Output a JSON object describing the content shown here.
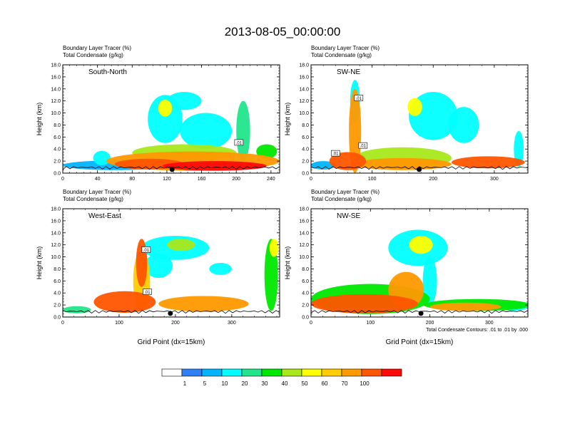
{
  "title": "2013-08-05_00:00:00",
  "legend": {
    "colors": [
      "#ffffff",
      "#2f7ff7",
      "#00b4ff",
      "#00ffff",
      "#22e58b",
      "#00e800",
      "#a8e81a",
      "#ffff00",
      "#ffcc00",
      "#ff9900",
      "#ff5500",
      "#ff0a0a"
    ],
    "labels": [
      "1",
      "5",
      "10",
      "20",
      "30",
      "40",
      "50",
      "60",
      "70",
      "100"
    ]
  },
  "contour_note": "Total Condensate Contours: .01 to .01 by .000",
  "chart_data": [
    {
      "type": "heatmap",
      "panel_label": "South-North",
      "title_lines": [
        "Boundary Layer Tracer    (%)",
        "Total Condensate    (g/kg)"
      ],
      "ylabel": "Height (km)",
      "xlabel": "",
      "xlim": [
        0,
        250
      ],
      "ylim": [
        0,
        18
      ],
      "xticks": [
        0,
        40,
        80,
        120,
        160,
        200,
        240
      ],
      "yticks": [
        "0.0",
        "2.0",
        "4.0",
        "6.0",
        "8.0",
        "10.0",
        "12.0",
        "14.0",
        "16.0",
        "18.0"
      ],
      "marker_x": 126,
      "contour_labels": [
        {
          "x": 203,
          "y": 5.1,
          "text": ".01"
        }
      ],
      "blobs": [
        {
          "cx": 60,
          "cy": 1.3,
          "rx": 60,
          "ry": 0.8,
          "level": 2
        },
        {
          "cx": 150,
          "cy": 2.0,
          "rx": 100,
          "ry": 1.6,
          "level": 9
        },
        {
          "cx": 140,
          "cy": 3.4,
          "rx": 60,
          "ry": 1.4,
          "level": 6
        },
        {
          "cx": 100,
          "cy": 1.5,
          "rx": 40,
          "ry": 0.9,
          "level": 10
        },
        {
          "cx": 175,
          "cy": 1.2,
          "rx": 60,
          "ry": 0.8,
          "level": 11
        },
        {
          "cx": 118,
          "cy": 9.0,
          "rx": 20,
          "ry": 4.0,
          "level": 3
        },
        {
          "cx": 118,
          "cy": 10.8,
          "rx": 8,
          "ry": 1.4,
          "level": 7
        },
        {
          "cx": 165,
          "cy": 7.0,
          "rx": 30,
          "ry": 3.0,
          "level": 3
        },
        {
          "cx": 140,
          "cy": 12.0,
          "rx": 20,
          "ry": 1.5,
          "level": 3
        },
        {
          "cx": 208,
          "cy": 7.0,
          "rx": 8,
          "ry": 5.0,
          "level": 4
        },
        {
          "cx": 45,
          "cy": 2.5,
          "rx": 10,
          "ry": 1.2,
          "level": 3
        },
        {
          "cx": 235,
          "cy": 3.6,
          "rx": 12,
          "ry": 1.2,
          "level": 5
        }
      ]
    },
    {
      "type": "heatmap",
      "panel_label": "SW-NE",
      "title_lines": [
        "Boundary Layer Tracer    (%)",
        "Total Condensate    (g/kg)"
      ],
      "ylabel": "Height (km)",
      "xlabel": "",
      "xlim": [
        0,
        355
      ],
      "ylim": [
        0,
        18
      ],
      "xticks": [
        0,
        100,
        200,
        300
      ],
      "yticks": [
        "0.0",
        "2.0",
        "4.0",
        "6.0",
        "8.0",
        "10.0",
        "12.0",
        "14.0",
        "16.0",
        "18.0"
      ],
      "marker_x": 177,
      "contour_labels": [
        {
          "x": 40,
          "y": 3.3,
          "text": ".01"
        },
        {
          "x": 78,
          "y": 12.5,
          "text": ".01"
        },
        {
          "x": 85,
          "y": 4.6,
          "text": ".01"
        }
      ],
      "blobs": [
        {
          "cx": 60,
          "cy": 2.0,
          "rx": 30,
          "ry": 1.5,
          "level": 10
        },
        {
          "cx": 72,
          "cy": 7.0,
          "rx": 10,
          "ry": 7.0,
          "level": 9
        },
        {
          "cx": 72,
          "cy": 12.0,
          "rx": 8,
          "ry": 3.5,
          "level": 3
        },
        {
          "cx": 150,
          "cy": 2.5,
          "rx": 80,
          "ry": 1.8,
          "level": 6
        },
        {
          "cx": 150,
          "cy": 1.5,
          "rx": 80,
          "ry": 1.0,
          "level": 9
        },
        {
          "cx": 200,
          "cy": 9.5,
          "rx": 40,
          "ry": 4.0,
          "level": 3
        },
        {
          "cx": 170,
          "cy": 11.0,
          "rx": 12,
          "ry": 1.5,
          "level": 7
        },
        {
          "cx": 250,
          "cy": 8.0,
          "rx": 25,
          "ry": 3.0,
          "level": 3
        },
        {
          "cx": 290,
          "cy": 1.8,
          "rx": 60,
          "ry": 1.0,
          "level": 10
        },
        {
          "cx": 340,
          "cy": 4.0,
          "rx": 8,
          "ry": 3.0,
          "level": 3
        },
        {
          "cx": 20,
          "cy": 1.3,
          "rx": 20,
          "ry": 0.7,
          "level": 2
        }
      ]
    },
    {
      "type": "heatmap",
      "panel_label": "West-East",
      "title_lines": [
        "Boundary Layer Tracer    (%)",
        "Total Condensate    (g/kg)"
      ],
      "ylabel": "Height (km)",
      "xlabel": "Grid Point (dx=15km)",
      "xlim": [
        0,
        385
      ],
      "ylim": [
        0,
        18
      ],
      "xticks": [
        0,
        100,
        200,
        300
      ],
      "yticks": [
        "0.0",
        "2.0",
        "4.0",
        "6.0",
        "8.0",
        "10.0",
        "12.0",
        "14.0",
        "16.0",
        "18.0"
      ],
      "marker_x": 191,
      "contour_labels": [
        {
          "x": 148,
          "y": 11.2,
          "text": ".01"
        },
        {
          "x": 150,
          "y": 4.2,
          "text": ".01"
        }
      ],
      "blobs": [
        {
          "cx": 25,
          "cy": 1.2,
          "rx": 25,
          "ry": 0.6,
          "level": 4
        },
        {
          "cx": 110,
          "cy": 2.5,
          "rx": 55,
          "ry": 1.8,
          "level": 10
        },
        {
          "cx": 140,
          "cy": 6.0,
          "rx": 15,
          "ry": 5.0,
          "level": 8
        },
        {
          "cx": 140,
          "cy": 9.0,
          "rx": 10,
          "ry": 4.0,
          "level": 10
        },
        {
          "cx": 200,
          "cy": 11.5,
          "rx": 60,
          "ry": 2.0,
          "level": 3
        },
        {
          "cx": 210,
          "cy": 12.0,
          "rx": 25,
          "ry": 1.0,
          "level": 6
        },
        {
          "cx": 170,
          "cy": 8.5,
          "rx": 25,
          "ry": 2.0,
          "level": 3
        },
        {
          "cx": 250,
          "cy": 2.2,
          "rx": 80,
          "ry": 1.3,
          "level": 9
        },
        {
          "cx": 280,
          "cy": 8.0,
          "rx": 20,
          "ry": 1.0,
          "level": 3
        },
        {
          "cx": 370,
          "cy": 7.0,
          "rx": 12,
          "ry": 6.0,
          "level": 5
        },
        {
          "cx": 375,
          "cy": 11.5,
          "rx": 8,
          "ry": 1.5,
          "level": 7
        }
      ]
    },
    {
      "type": "heatmap",
      "panel_label": "NW-SE",
      "title_lines": [
        "Boundary Layer Tracer    (%)",
        "Total Condensate    (g/kg)"
      ],
      "ylabel": "Height (km)",
      "xlabel": "Grid Point (dx=15km)",
      "xlim": [
        0,
        365
      ],
      "ylim": [
        0,
        18
      ],
      "xticks": [
        0,
        100,
        200,
        300
      ],
      "yticks": [
        "0.0",
        "2.0",
        "4.0",
        "6.0",
        "8.0",
        "10.0",
        "12.0",
        "14.0",
        "16.0",
        "18.0"
      ],
      "marker_x": 185,
      "contour_labels": [],
      "blobs": [
        {
          "cx": 100,
          "cy": 3.0,
          "rx": 100,
          "ry": 2.5,
          "level": 5
        },
        {
          "cx": 90,
          "cy": 2.2,
          "rx": 90,
          "ry": 1.6,
          "level": 10
        },
        {
          "cx": 160,
          "cy": 4.5,
          "rx": 30,
          "ry": 3.0,
          "level": 9
        },
        {
          "cx": 180,
          "cy": 11.5,
          "rx": 50,
          "ry": 3.0,
          "level": 3
        },
        {
          "cx": 185,
          "cy": 12.0,
          "rx": 20,
          "ry": 1.5,
          "level": 7
        },
        {
          "cx": 200,
          "cy": 6.0,
          "rx": 12,
          "ry": 4.0,
          "level": 3
        },
        {
          "cx": 280,
          "cy": 2.0,
          "rx": 90,
          "ry": 1.0,
          "level": 5
        },
        {
          "cx": 260,
          "cy": 1.7,
          "rx": 60,
          "ry": 0.7,
          "level": 9
        },
        {
          "cx": 340,
          "cy": 1.8,
          "rx": 25,
          "ry": 0.8,
          "level": 3
        }
      ]
    }
  ]
}
